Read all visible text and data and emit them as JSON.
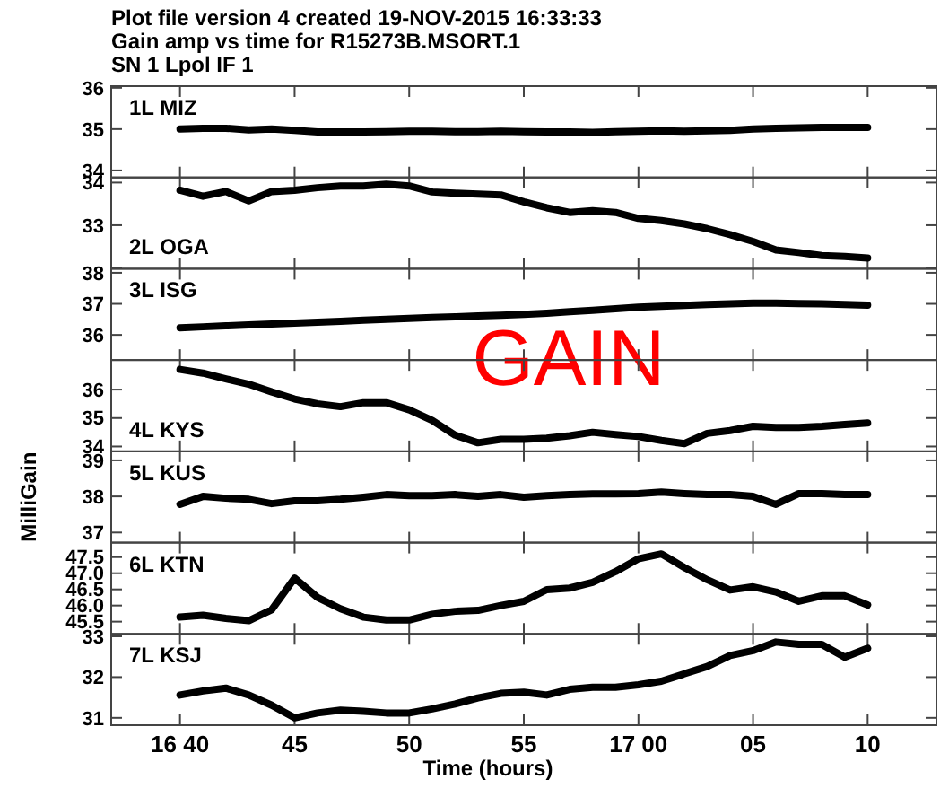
{
  "chart_data": [
    {
      "type": "line",
      "title": "Plot file version 4  created 19-NOV-2015 16:33:33",
      "subtitle": "Gain amp vs time for R15273B.MSORT.1",
      "annotations": [
        "SN 1  Lpol  IF 1"
      ],
      "tick_labels": "y",
      "x": [
        "2015-11-19T16:40",
        "2015-11-19T16:41",
        "2015-11-19T16:42",
        "2015-11-19T16:43",
        "2015-11-19T16:44",
        "2015-11-19T16:45",
        "2015-11-19T16:46",
        "2015-11-19T16:47",
        "2015-11-19T16:48",
        "2015-11-19T16:49",
        "2015-11-19T16:50",
        "2015-11-19T16:51",
        "2015-11-19T16:52",
        "2015-11-19T16:53",
        "2015-11-19T16:54",
        "2015-11-19T16:55",
        "2015-11-19T16:56",
        "2015-11-19T16:57",
        "2015-11-19T16:58",
        "2015-11-19T16:59",
        "2015-11-19T17:00",
        "2015-11-19T17:01",
        "2015-11-19T17:02",
        "2015-11-19T17:03",
        "2015-11-19T17:04",
        "2015-11-19T17:05",
        "2015-11-19T17:06",
        "2015-11-19T17:07",
        "2015-11-19T17:08",
        "2015-11-19T17:09",
        "2015-11-19T17:10"
      ],
      "xlim": [
        "2015-11-19T16:37",
        "2015-11-19T17:13"
      ],
      "xticks": [
        {
          "value": "2015-11-19T16:40",
          "label": null
        },
        {
          "value": "2015-11-19T16:45",
          "label": null
        },
        {
          "value": "2015-11-19T16:50",
          "label": null
        },
        {
          "value": "2015-11-19T16:55",
          "label": null
        },
        {
          "value": "2015-11-19T17:00",
          "label": null
        },
        {
          "value": "2015-11-19T17:05",
          "label": null
        },
        {
          "value": "2015-11-19T17:10",
          "label": null
        }
      ],
      "ylim": [
        33.83,
        36.04
      ],
      "yticks": [
        36,
        35,
        34
      ],
      "series": [
        {
          "name": "1L MIZ",
          "color": "#000000",
          "values": [
            35.0,
            35.02,
            35.02,
            34.98,
            35.0,
            34.97,
            34.93,
            34.93,
            34.93,
            34.94,
            34.95,
            34.95,
            34.94,
            34.94,
            34.95,
            34.94,
            34.93,
            34.93,
            34.92,
            34.94,
            34.95,
            34.96,
            34.95,
            34.96,
            34.97,
            35.0,
            35.02,
            35.03,
            35.04,
            35.04,
            35.04
          ]
        }
      ]
    },
    {
      "type": "line",
      "tick_labels": "y",
      "x": [
        "2015-11-19T16:40",
        "2015-11-19T16:41",
        "2015-11-19T16:42",
        "2015-11-19T16:43",
        "2015-11-19T16:44",
        "2015-11-19T16:45",
        "2015-11-19T16:46",
        "2015-11-19T16:47",
        "2015-11-19T16:48",
        "2015-11-19T16:49",
        "2015-11-19T16:50",
        "2015-11-19T16:51",
        "2015-11-19T16:52",
        "2015-11-19T16:53",
        "2015-11-19T16:54",
        "2015-11-19T16:55",
        "2015-11-19T16:56",
        "2015-11-19T16:57",
        "2015-11-19T16:58",
        "2015-11-19T16:59",
        "2015-11-19T17:00",
        "2015-11-19T17:01",
        "2015-11-19T17:02",
        "2015-11-19T17:03",
        "2015-11-19T17:04",
        "2015-11-19T17:05",
        "2015-11-19T17:06",
        "2015-11-19T17:07",
        "2015-11-19T17:08",
        "2015-11-19T17:09",
        "2015-11-19T17:10"
      ],
      "xlim": [
        "2015-11-19T16:37",
        "2015-11-19T17:13"
      ],
      "xticks": [
        {
          "value": "2015-11-19T16:40",
          "label": null
        },
        {
          "value": "2015-11-19T16:45",
          "label": null
        },
        {
          "value": "2015-11-19T16:50",
          "label": null
        },
        {
          "value": "2015-11-19T16:55",
          "label": null
        },
        {
          "value": "2015-11-19T17:00",
          "label": null
        },
        {
          "value": "2015-11-19T17:05",
          "label": null
        },
        {
          "value": "2015-11-19T17:10",
          "label": null
        }
      ],
      "ylim": [
        31.98,
        34.12
      ],
      "yticks": [
        34,
        33,
        {
          "value": 32,
          "label": null
        }
      ],
      "series": [
        {
          "name": "2L OGA",
          "color": "#000000",
          "values": [
            33.82,
            33.68,
            33.79,
            33.57,
            33.79,
            33.82,
            33.88,
            33.92,
            33.92,
            33.96,
            33.92,
            33.78,
            33.75,
            33.73,
            33.71,
            33.55,
            33.41,
            33.3,
            33.34,
            33.3,
            33.16,
            33.11,
            33.03,
            32.92,
            32.78,
            32.62,
            32.42,
            32.36,
            32.29,
            32.27,
            32.23
          ]
        }
      ]
    },
    {
      "type": "line",
      "annotations": [
        "GAIN"
      ],
      "tick_labels": "y",
      "x": [
        "2015-11-19T16:40",
        "2015-11-19T16:41",
        "2015-11-19T16:42",
        "2015-11-19T16:43",
        "2015-11-19T16:44",
        "2015-11-19T16:45",
        "2015-11-19T16:46",
        "2015-11-19T16:47",
        "2015-11-19T16:48",
        "2015-11-19T16:49",
        "2015-11-19T16:50",
        "2015-11-19T16:51",
        "2015-11-19T16:52",
        "2015-11-19T16:53",
        "2015-11-19T16:54",
        "2015-11-19T16:55",
        "2015-11-19T16:56",
        "2015-11-19T16:57",
        "2015-11-19T16:58",
        "2015-11-19T16:59",
        "2015-11-19T17:00",
        "2015-11-19T17:01",
        "2015-11-19T17:02",
        "2015-11-19T17:03",
        "2015-11-19T17:04",
        "2015-11-19T17:05",
        "2015-11-19T17:06",
        "2015-11-19T17:07",
        "2015-11-19T17:08",
        "2015-11-19T17:09",
        "2015-11-19T17:10"
      ],
      "xlim": [
        "2015-11-19T16:37",
        "2015-11-19T17:13"
      ],
      "xticks": [
        {
          "value": "2015-11-19T16:40",
          "label": null
        },
        {
          "value": "2015-11-19T16:45",
          "label": null
        },
        {
          "value": "2015-11-19T16:50",
          "label": null
        },
        {
          "value": "2015-11-19T16:55",
          "label": null
        },
        {
          "value": "2015-11-19T17:00",
          "label": null
        },
        {
          "value": "2015-11-19T17:05",
          "label": null
        },
        {
          "value": "2015-11-19T17:10",
          "label": null
        }
      ],
      "ylim": [
        35.19,
        38.13
      ],
      "yticks": [
        38,
        37,
        36
      ],
      "series": [
        {
          "name": "3L ISG",
          "color": "#000000",
          "values": [
            36.23,
            36.26,
            36.29,
            36.32,
            36.35,
            36.38,
            36.41,
            36.44,
            36.47,
            36.5,
            36.53,
            36.56,
            36.58,
            36.61,
            36.63,
            36.66,
            36.7,
            36.75,
            36.79,
            36.84,
            36.89,
            36.92,
            36.95,
            36.98,
            37.0,
            37.02,
            37.02,
            37.01,
            37.0,
            36.98,
            36.96
          ]
        }
      ]
    },
    {
      "type": "line",
      "tick_labels": "y",
      "x": [
        "2015-11-19T16:40",
        "2015-11-19T16:41",
        "2015-11-19T16:42",
        "2015-11-19T16:43",
        "2015-11-19T16:44",
        "2015-11-19T16:45",
        "2015-11-19T16:46",
        "2015-11-19T16:47",
        "2015-11-19T16:48",
        "2015-11-19T16:49",
        "2015-11-19T16:50",
        "2015-11-19T16:51",
        "2015-11-19T16:52",
        "2015-11-19T16:53",
        "2015-11-19T16:54",
        "2015-11-19T16:55",
        "2015-11-19T16:56",
        "2015-11-19T16:57",
        "2015-11-19T16:58",
        "2015-11-19T16:59",
        "2015-11-19T17:00",
        "2015-11-19T17:01",
        "2015-11-19T17:02",
        "2015-11-19T17:03",
        "2015-11-19T17:04",
        "2015-11-19T17:05",
        "2015-11-19T17:06",
        "2015-11-19T17:07",
        "2015-11-19T17:08",
        "2015-11-19T17:09",
        "2015-11-19T17:10"
      ],
      "xlim": [
        "2015-11-19T16:37",
        "2015-11-19T17:13"
      ],
      "xticks": [
        {
          "value": "2015-11-19T16:40",
          "label": null
        },
        {
          "value": "2015-11-19T16:45",
          "label": null
        },
        {
          "value": "2015-11-19T16:50",
          "label": null
        },
        {
          "value": "2015-11-19T16:55",
          "label": null
        },
        {
          "value": "2015-11-19T17:00",
          "label": null
        },
        {
          "value": "2015-11-19T17:05",
          "label": null
        },
        {
          "value": "2015-11-19T17:10",
          "label": null
        }
      ],
      "ylim": [
        33.83,
        37.04
      ],
      "yticks": [
        36,
        35,
        34
      ],
      "series": [
        {
          "name": "4L KYS",
          "color": "#000000",
          "values": [
            36.71,
            36.58,
            36.38,
            36.19,
            35.92,
            35.67,
            35.5,
            35.4,
            35.54,
            35.54,
            35.29,
            34.92,
            34.4,
            34.13,
            34.25,
            34.25,
            34.29,
            34.38,
            34.5,
            34.42,
            34.35,
            34.21,
            34.1,
            34.46,
            34.56,
            34.71,
            34.67,
            34.67,
            34.71,
            34.77,
            34.83
          ]
        }
      ]
    },
    {
      "type": "line",
      "ylabel": "MilliGain",
      "tick_labels": "y",
      "x": [
        "2015-11-19T16:40",
        "2015-11-19T16:41",
        "2015-11-19T16:42",
        "2015-11-19T16:43",
        "2015-11-19T16:44",
        "2015-11-19T16:45",
        "2015-11-19T16:46",
        "2015-11-19T16:47",
        "2015-11-19T16:48",
        "2015-11-19T16:49",
        "2015-11-19T16:50",
        "2015-11-19T16:51",
        "2015-11-19T16:52",
        "2015-11-19T16:53",
        "2015-11-19T16:54",
        "2015-11-19T16:55",
        "2015-11-19T16:56",
        "2015-11-19T16:57",
        "2015-11-19T16:58",
        "2015-11-19T16:59",
        "2015-11-19T17:00",
        "2015-11-19T17:01",
        "2015-11-19T17:02",
        "2015-11-19T17:03",
        "2015-11-19T17:04",
        "2015-11-19T17:05",
        "2015-11-19T17:06",
        "2015-11-19T17:07",
        "2015-11-19T17:08",
        "2015-11-19T17:09",
        "2015-11-19T17:10"
      ],
      "xlim": [
        "2015-11-19T16:37",
        "2015-11-19T17:13"
      ],
      "xticks": [
        {
          "value": "2015-11-19T16:40",
          "label": null
        },
        {
          "value": "2015-11-19T16:45",
          "label": null
        },
        {
          "value": "2015-11-19T16:50",
          "label": null
        },
        {
          "value": "2015-11-19T16:55",
          "label": null
        },
        {
          "value": "2015-11-19T17:00",
          "label": null
        },
        {
          "value": "2015-11-19T17:05",
          "label": null
        },
        {
          "value": "2015-11-19T17:10",
          "label": null
        }
      ],
      "ylim": [
        36.72,
        39.25
      ],
      "yticks": [
        39,
        38,
        37
      ],
      "series": [
        {
          "name": "5L KUS",
          "color": "#000000",
          "values": [
            37.78,
            38.0,
            37.95,
            37.92,
            37.8,
            37.88,
            37.88,
            37.92,
            37.98,
            38.05,
            38.02,
            38.02,
            38.05,
            38.0,
            38.05,
            37.98,
            38.02,
            38.05,
            38.07,
            38.07,
            38.08,
            38.12,
            38.08,
            38.05,
            38.05,
            38.0,
            37.78,
            38.08,
            38.08,
            38.05,
            38.05
          ]
        }
      ]
    },
    {
      "type": "line",
      "tick_labels": "y",
      "x": [
        "2015-11-19T16:40",
        "2015-11-19T16:41",
        "2015-11-19T16:42",
        "2015-11-19T16:43",
        "2015-11-19T16:44",
        "2015-11-19T16:45",
        "2015-11-19T16:46",
        "2015-11-19T16:47",
        "2015-11-19T16:48",
        "2015-11-19T16:49",
        "2015-11-19T16:50",
        "2015-11-19T16:51",
        "2015-11-19T16:52",
        "2015-11-19T16:53",
        "2015-11-19T16:54",
        "2015-11-19T16:55",
        "2015-11-19T16:56",
        "2015-11-19T16:57",
        "2015-11-19T16:58",
        "2015-11-19T16:59",
        "2015-11-19T17:00",
        "2015-11-19T17:01",
        "2015-11-19T17:02",
        "2015-11-19T17:03",
        "2015-11-19T17:04",
        "2015-11-19T17:05",
        "2015-11-19T17:06",
        "2015-11-19T17:07",
        "2015-11-19T17:08",
        "2015-11-19T17:09",
        "2015-11-19T17:10"
      ],
      "xlim": [
        "2015-11-19T16:37",
        "2015-11-19T17:13"
      ],
      "xticks": [
        {
          "value": "2015-11-19T16:40",
          "label": null
        },
        {
          "value": "2015-11-19T16:45",
          "label": null
        },
        {
          "value": "2015-11-19T16:50",
          "label": null
        },
        {
          "value": "2015-11-19T16:55",
          "label": null
        },
        {
          "value": "2015-11-19T17:00",
          "label": null
        },
        {
          "value": "2015-11-19T17:05",
          "label": null
        },
        {
          "value": "2015-11-19T17:10",
          "label": null
        }
      ],
      "ylim": [
        45.12,
        47.95
      ],
      "yticks": [
        {
          "value": 47.5,
          "label": "47.5"
        },
        {
          "value": 47,
          "label": "47.0"
        },
        {
          "value": 46.5,
          "label": "46.5"
        },
        {
          "value": 46,
          "label": "46.0"
        },
        {
          "value": 45.5,
          "label": "45.5"
        }
      ],
      "series": [
        {
          "name": "6L KTN",
          "color": "#000000",
          "values": [
            45.64,
            45.7,
            45.6,
            45.53,
            45.87,
            46.85,
            46.25,
            45.9,
            45.64,
            45.55,
            45.55,
            45.73,
            45.82,
            45.85,
            46.0,
            46.13,
            46.49,
            46.54,
            46.72,
            47.05,
            47.45,
            47.6,
            47.18,
            46.8,
            46.48,
            46.58,
            46.42,
            46.13,
            46.3,
            46.3,
            46.02
          ]
        }
      ]
    },
    {
      "type": "line",
      "xlabel": "Time (hours)",
      "x": [
        "2015-11-19T16:40",
        "2015-11-19T16:41",
        "2015-11-19T16:42",
        "2015-11-19T16:43",
        "2015-11-19T16:44",
        "2015-11-19T16:45",
        "2015-11-19T16:46",
        "2015-11-19T16:47",
        "2015-11-19T16:48",
        "2015-11-19T16:49",
        "2015-11-19T16:50",
        "2015-11-19T16:51",
        "2015-11-19T16:52",
        "2015-11-19T16:53",
        "2015-11-19T16:54",
        "2015-11-19T16:55",
        "2015-11-19T16:56",
        "2015-11-19T16:57",
        "2015-11-19T16:58",
        "2015-11-19T16:59",
        "2015-11-19T17:00",
        "2015-11-19T17:01",
        "2015-11-19T17:02",
        "2015-11-19T17:03",
        "2015-11-19T17:04",
        "2015-11-19T17:05",
        "2015-11-19T17:06",
        "2015-11-19T17:07",
        "2015-11-19T17:08",
        "2015-11-19T17:09",
        "2015-11-19T17:10"
      ],
      "xlim": [
        "2015-11-19T16:37",
        "2015-11-19T17:13"
      ],
      "xticks": [
        {
          "value": "2015-11-19T16:40",
          "label": "16 40"
        },
        {
          "value": "2015-11-19T16:45",
          "label": "45"
        },
        {
          "value": "2015-11-19T16:50",
          "label": "50"
        },
        {
          "value": "2015-11-19T16:55",
          "label": "55"
        },
        {
          "value": "2015-11-19T17:00",
          "label": "17 00"
        },
        {
          "value": "2015-11-19T17:05",
          "label": "05"
        },
        {
          "value": "2015-11-19T17:10",
          "label": "10"
        }
      ],
      "ylim": [
        30.82,
        33.06
      ],
      "yticks": [
        33,
        32,
        31
      ],
      "series": [
        {
          "name": "7L KSJ",
          "color": "#000000",
          "values": [
            31.56,
            31.66,
            31.73,
            31.56,
            31.31,
            31.0,
            31.12,
            31.19,
            31.16,
            31.12,
            31.12,
            31.22,
            31.34,
            31.49,
            31.6,
            31.63,
            31.56,
            31.7,
            31.75,
            31.75,
            31.81,
            31.9,
            32.08,
            32.26,
            32.53,
            32.65,
            32.86,
            32.8,
            32.8,
            32.49,
            32.71
          ]
        }
      ]
    }
  ]
}
